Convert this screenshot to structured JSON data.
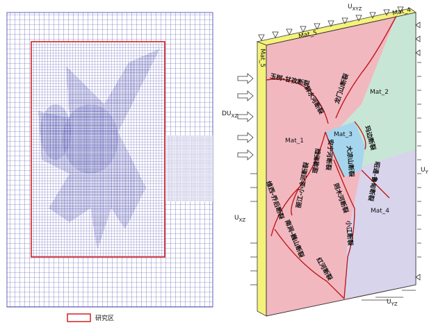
{
  "legend": {
    "label": "研究区"
  },
  "boundary_labels": {
    "top": {
      "main": "U",
      "sub": "XYZ"
    },
    "left": {
      "main": "DU",
      "sub": "XZ"
    },
    "left_lower": {
      "main": "U",
      "sub": "XZ"
    },
    "right": {
      "main": "U",
      "sub": "Y"
    },
    "bottom": {
      "main": "U",
      "sub": "YZ"
    }
  },
  "face_labels": {
    "top_left": "Mat_5",
    "top_right": "Mat_4",
    "side": "Mat_5"
  },
  "materials": [
    "Mat_1",
    "Mat_2",
    "Mat_3",
    "Mat_4"
  ],
  "faults": [
    "玉树-甘孜断裂",
    "鲜水河断裂",
    "龙门山断裂",
    "玛边断裂",
    "大凉山断裂",
    "安宁河断裂",
    "则木河断裂",
    "昭通-鲁甸断裂",
    "丽江-小金河断裂",
    "理塘断裂",
    "维西-乔后断裂",
    "南涧-巍山断裂",
    "红河断裂",
    "小江断裂"
  ]
}
